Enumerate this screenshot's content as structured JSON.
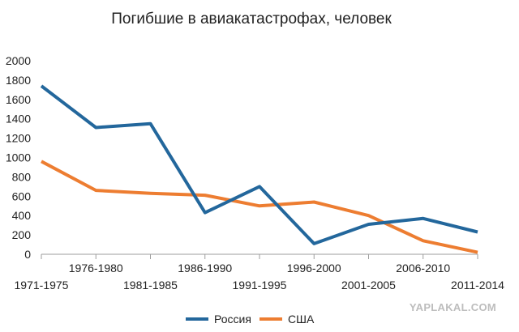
{
  "chart_data": {
    "type": "line",
    "title": "Погибшие в авиакатастрофах, человек",
    "xlabel": "",
    "ylabel": "",
    "categories": [
      "1971-1975",
      "1976-1980",
      "1981-1985",
      "1986-1990",
      "1991-1995",
      "1996-2000",
      "2001-2005",
      "2006-2010",
      "2011-2014"
    ],
    "ylim": [
      0,
      2000
    ],
    "yticks": [
      "2000",
      "1800",
      "1600",
      "1400",
      "1200",
      "1000",
      "800",
      "600",
      "400",
      "200",
      "0"
    ],
    "grid": false,
    "legend_position": "bottom",
    "series": [
      {
        "name": "Россия",
        "color": "#23679c",
        "values": [
          1740,
          1310,
          1350,
          430,
          700,
          110,
          310,
          370,
          230
        ]
      },
      {
        "name": "США",
        "color": "#ed7d31",
        "values": [
          960,
          660,
          630,
          610,
          500,
          540,
          400,
          140,
          20
        ]
      }
    ]
  },
  "watermark": "YAPLAKAL.COM"
}
